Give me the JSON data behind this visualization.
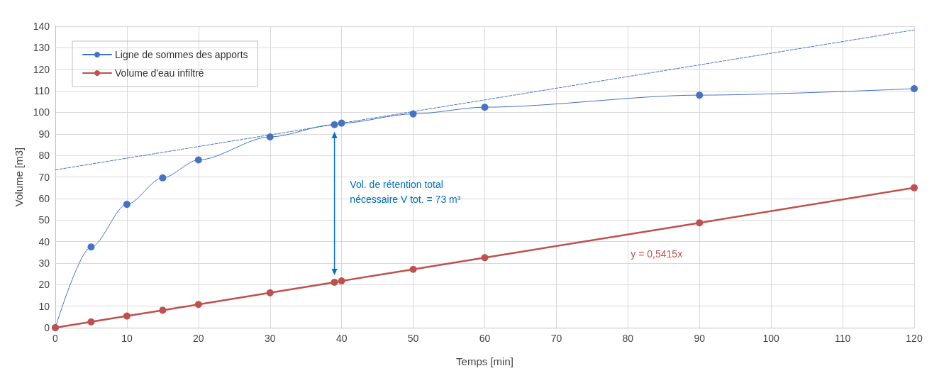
{
  "chart_data": {
    "type": "line",
    "xlabel": "Temps [min]",
    "ylabel": "Volume [m3]",
    "xlim": [
      0,
      120
    ],
    "xticks": [
      0,
      10,
      20,
      30,
      40,
      50,
      60,
      70,
      80,
      90,
      100,
      110,
      120
    ],
    "ylim": [
      0,
      140
    ],
    "yticks": [
      0,
      10,
      20,
      30,
      40,
      50,
      60,
      70,
      80,
      90,
      100,
      110,
      120,
      130,
      140
    ],
    "grid": true,
    "legend": "top left",
    "marker": "circle",
    "series": [
      {
        "name": "Ligne de sommes des apports",
        "color": "#4472c4",
        "x": [
          0,
          5,
          10,
          15,
          20,
          30,
          39,
          40,
          50,
          60,
          90,
          120
        ],
        "values": [
          0,
          37.5,
          57.3,
          69.6,
          77.9,
          88.6,
          94.3,
          95,
          99.3,
          102.4,
          108,
          111
        ]
      },
      {
        "name": "Volume d'eau infiltré",
        "color": "#c0504d",
        "x": [
          0,
          5,
          10,
          15,
          20,
          30,
          39,
          40,
          50,
          60,
          90,
          120
        ],
        "values": [
          0,
          2.7,
          5.4,
          8.1,
          10.8,
          16.2,
          21.1,
          21.7,
          27.1,
          32.5,
          48.7,
          65
        ]
      },
      {
        "type": "line",
        "color": "#4472c4",
        "line_style": "dashed",
        "marker": "none",
        "x": [
          0,
          120
        ],
        "values": [
          73.3,
          138.3
        ]
      }
    ],
    "annotations": [
      "Vol. de rétention total nécessaire V tot. = 73 m³",
      "y = 0,5415x"
    ]
  }
}
